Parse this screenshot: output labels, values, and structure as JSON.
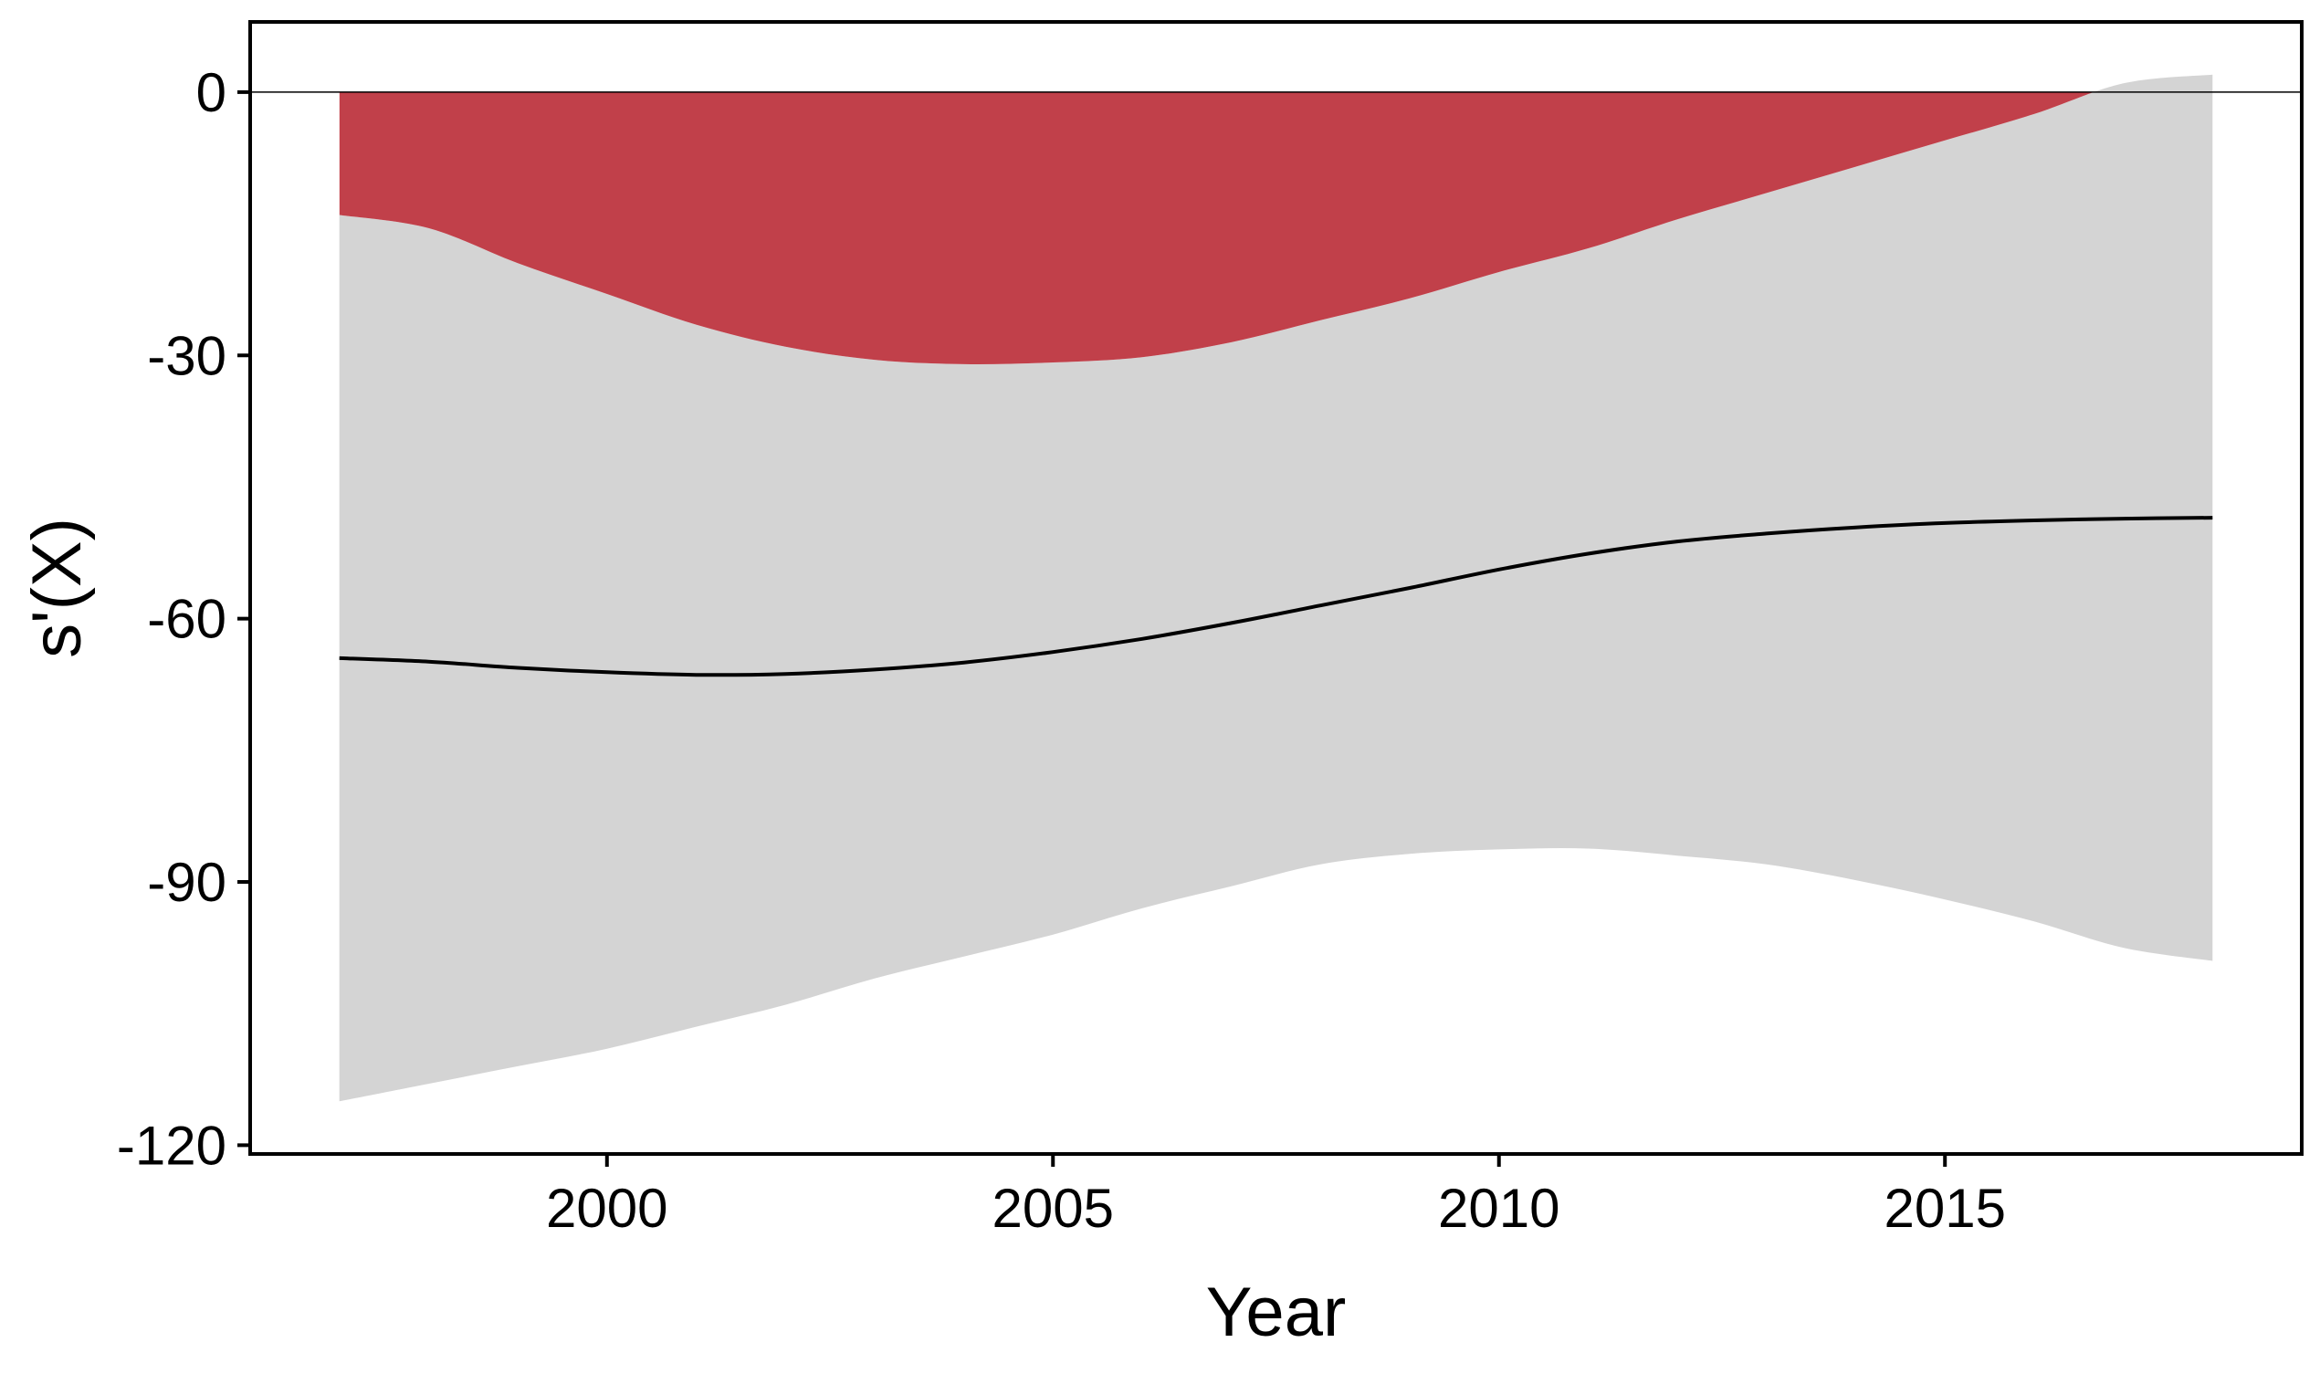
{
  "chart_data": {
    "type": "area",
    "title": "",
    "xlabel": "Year",
    "ylabel": "s'(X)",
    "xlim": [
      1996.0,
      2019.0
    ],
    "ylim": [
      -121.0,
      8.0
    ],
    "x_ticks": [
      2000,
      2005,
      2010,
      2015
    ],
    "y_ticks": [
      0,
      -30,
      -60,
      -90,
      -120
    ],
    "x_tick_labels": [
      "2000",
      "2005",
      "2010",
      "2015"
    ],
    "y_tick_labels": [
      "0",
      "-30",
      "-60",
      "-90",
      "-120"
    ],
    "grid": false,
    "reference_line_y": 0,
    "x": [
      1997.0,
      1998.0,
      1999.0,
      2000.0,
      2001.0,
      2002.0,
      2003.0,
      2004.0,
      2005.0,
      2006.0,
      2007.0,
      2008.0,
      2009.0,
      2010.0,
      2011.0,
      2012.0,
      2013.0,
      2014.0,
      2015.0,
      2016.0,
      2017.0,
      2018.0
    ],
    "series": [
      {
        "name": "",
        "role": "derivative estimate",
        "values": [
          -64.5,
          -64.9,
          -65.6,
          -66.1,
          -66.4,
          -66.3,
          -65.8,
          -65.0,
          -63.8,
          -62.3,
          -60.5,
          -58.5,
          -56.5,
          -54.4,
          -52.6,
          -51.2,
          -50.3,
          -49.6,
          -49.1,
          -48.8,
          -48.6,
          -48.5
        ]
      },
      {
        "name": "",
        "role": "lower confidence bound",
        "values": [
          -115.0,
          -113.0,
          -111.0,
          -109.0,
          -106.5,
          -104.0,
          -101.0,
          -98.5,
          -96.0,
          -93.0,
          -90.5,
          -88.0,
          -86.8,
          -86.3,
          -86.2,
          -87.0,
          -88.0,
          -89.8,
          -92.0,
          -94.5,
          -97.5,
          -99.0
        ]
      },
      {
        "name": "",
        "role": "upper confidence bound",
        "values": [
          -14.0,
          -15.5,
          -19.5,
          -23.0,
          -26.5,
          -29.0,
          -30.5,
          -31.0,
          -30.8,
          -30.2,
          -28.5,
          -26.0,
          -23.5,
          -20.5,
          -17.8,
          -14.5,
          -11.5,
          -8.5,
          -5.5,
          -2.5,
          1.0,
          2.0
        ]
      }
    ],
    "colors": {
      "ribbon": "#d4d4d4",
      "significant_fill": "#c1404a",
      "line": "#000000",
      "frame": "#000000",
      "background": "#ffffff"
    }
  }
}
